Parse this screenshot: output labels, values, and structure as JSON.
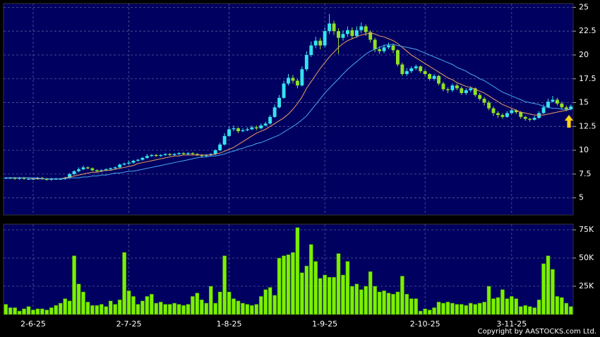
{
  "chart_data": {
    "type": "candlestick",
    "categories": [
      null,
      null,
      null,
      null,
      null,
      null,
      "2-6-25",
      null,
      null,
      null,
      null,
      null,
      null,
      null,
      null,
      null,
      null,
      null,
      null,
      null,
      null,
      null,
      null,
      null,
      null,
      null,
      null,
      "2-7-25",
      null,
      null,
      null,
      null,
      null,
      null,
      null,
      null,
      null,
      null,
      null,
      null,
      null,
      null,
      null,
      null,
      null,
      null,
      null,
      null,
      null,
      "1-8-25",
      null,
      null,
      null,
      null,
      null,
      null,
      null,
      null,
      null,
      null,
      null,
      null,
      null,
      null,
      null,
      null,
      null,
      null,
      null,
      null,
      "1-9-25",
      null,
      null,
      null,
      null,
      null,
      null,
      null,
      null,
      null,
      null,
      null,
      null,
      null,
      null,
      null,
      null,
      null,
      null,
      null,
      null,
      null,
      "2-10-25",
      null,
      null,
      null,
      null,
      null,
      null,
      null,
      null,
      null,
      null,
      null,
      null,
      null,
      null,
      null,
      null,
      null,
      null,
      "3-11-25",
      null,
      null,
      null,
      null,
      null,
      null,
      null,
      null,
      null,
      null,
      null,
      null,
      null
    ],
    "open": [
      7.1,
      7.1,
      7.1,
      7.0,
      7.1,
      7.0,
      7.0,
      7.0,
      7.1,
      7.0,
      6.9,
      7.0,
      7.0,
      7.0,
      7.1,
      7.5,
      7.8,
      8.0,
      8.2,
      8.1,
      7.9,
      7.8,
      7.9,
      8.0,
      8.1,
      8.2,
      8.5,
      8.6,
      8.7,
      8.9,
      9.0,
      9.2,
      9.4,
      9.5,
      9.4,
      9.5,
      9.6,
      9.5,
      9.6,
      9.7,
      9.6,
      9.7,
      9.6,
      9.5,
      9.4,
      9.5,
      9.6,
      10.0,
      10.6,
      11.5,
      12.2,
      12.3,
      12.0,
      12.1,
      12.2,
      12.4,
      12.3,
      12.6,
      12.8,
      13.5,
      14.5,
      15.5,
      17.0,
      17.6,
      17.3,
      16.8,
      18.5,
      20.0,
      21.0,
      21.5,
      21.0,
      22.5,
      23.3,
      22.5,
      21.8,
      22.2,
      22.6,
      22.0,
      22.6,
      23.0,
      22.4,
      21.6,
      20.6,
      20.4,
      20.8,
      21.0,
      20.5,
      19.0,
      18.0,
      18.3,
      18.6,
      18.8,
      18.3,
      18.0,
      17.5,
      17.8,
      17.0,
      16.4,
      16.3,
      16.8,
      16.5,
      16.0,
      16.3,
      16.5,
      15.8,
      15.4,
      15.0,
      14.4,
      13.9,
      13.7,
      13.5,
      13.9,
      14.2,
      14.0,
      13.5,
      13.3,
      13.2,
      13.4,
      13.9,
      14.5,
      15.1,
      15.3,
      14.9,
      14.5,
      14.3
    ],
    "high": [
      7.2,
      7.2,
      7.2,
      7.2,
      7.2,
      7.1,
      7.1,
      7.2,
      7.2,
      7.1,
      7.1,
      7.1,
      7.1,
      7.2,
      7.6,
      7.9,
      8.2,
      8.4,
      8.3,
      8.2,
      8.0,
      8.0,
      8.1,
      8.2,
      8.3,
      8.6,
      8.7,
      8.9,
      9.0,
      9.1,
      9.3,
      9.6,
      9.6,
      9.6,
      9.6,
      9.7,
      9.7,
      9.7,
      9.8,
      9.8,
      9.8,
      9.8,
      9.7,
      9.6,
      9.6,
      9.7,
      10.1,
      10.8,
      11.8,
      12.5,
      12.6,
      12.4,
      12.3,
      12.4,
      12.6,
      12.6,
      12.8,
      13.0,
      13.7,
      14.8,
      15.8,
      17.3,
      18.0,
      17.9,
      17.5,
      18.8,
      20.4,
      21.4,
      21.9,
      21.8,
      22.9,
      24.3,
      23.6,
      22.8,
      22.6,
      23.0,
      22.9,
      23.0,
      23.4,
      23.2,
      22.6,
      21.8,
      20.9,
      21.1,
      21.3,
      21.2,
      20.6,
      19.2,
      18.6,
      18.8,
      19.0,
      18.9,
      18.5,
      18.1,
      18.0,
      17.9,
      17.2,
      16.6,
      17.0,
      17.0,
      16.7,
      16.5,
      16.7,
      16.6,
      16.0,
      15.6,
      15.2,
      14.6,
      14.1,
      13.9,
      14.1,
      14.4,
      14.3,
      14.1,
      13.6,
      13.4,
      13.6,
      14.1,
      14.8,
      15.4,
      15.7,
      15.5,
      15.1,
      14.7,
      14.8
    ],
    "low": [
      7.0,
      7.0,
      6.9,
      6.9,
      6.9,
      6.9,
      6.9,
      6.9,
      6.9,
      6.8,
      6.8,
      6.9,
      6.9,
      6.9,
      7.0,
      7.4,
      7.7,
      7.9,
      8.0,
      7.8,
      7.7,
      7.7,
      7.8,
      7.9,
      8.0,
      8.1,
      8.4,
      8.5,
      8.6,
      8.8,
      8.9,
      9.1,
      9.3,
      9.3,
      9.3,
      9.4,
      9.4,
      9.4,
      9.5,
      9.5,
      9.5,
      9.5,
      9.4,
      9.2,
      9.3,
      9.4,
      9.5,
      9.9,
      10.5,
      11.4,
      12.0,
      11.8,
      11.9,
      12.0,
      12.1,
      12.1,
      12.2,
      12.5,
      12.7,
      13.4,
      14.4,
      15.4,
      16.8,
      17.0,
      16.5,
      16.7,
      18.3,
      19.8,
      20.7,
      20.6,
      20.8,
      22.2,
      22.1,
      20.1,
      21.5,
      21.9,
      21.7,
      21.8,
      22.3,
      22.0,
      21.3,
      20.3,
      20.1,
      20.2,
      20.6,
      20.2,
      18.8,
      17.8,
      17.8,
      18.1,
      18.4,
      18.1,
      17.8,
      17.3,
      17.3,
      16.8,
      16.2,
      16.0,
      16.1,
      16.3,
      15.8,
      15.8,
      16.1,
      15.6,
      15.2,
      14.7,
      14.2,
      13.6,
      13.4,
      13.3,
      13.4,
      13.8,
      13.8,
      13.3,
      13.1,
      13.0,
      13.1,
      13.3,
      13.8,
      14.4,
      15.0,
      14.7,
      14.3,
      14.1,
      14.2
    ],
    "close": [
      7.1,
      7.1,
      7.0,
      7.1,
      7.0,
      7.0,
      7.0,
      7.1,
      7.0,
      6.9,
      7.0,
      7.0,
      7.0,
      7.1,
      7.5,
      7.8,
      8.0,
      8.2,
      8.1,
      7.9,
      7.8,
      7.9,
      8.0,
      8.1,
      8.2,
      8.5,
      8.6,
      8.7,
      8.9,
      9.0,
      9.2,
      9.4,
      9.5,
      9.4,
      9.5,
      9.6,
      9.5,
      9.6,
      9.7,
      9.6,
      9.7,
      9.6,
      9.5,
      9.4,
      9.5,
      9.6,
      10.0,
      10.6,
      11.5,
      12.2,
      12.3,
      12.0,
      12.1,
      12.2,
      12.4,
      12.3,
      12.6,
      12.8,
      13.5,
      14.5,
      15.5,
      17.0,
      17.6,
      17.3,
      16.8,
      18.5,
      20.0,
      21.0,
      21.5,
      21.0,
      22.5,
      23.3,
      22.5,
      21.8,
      22.2,
      22.6,
      22.0,
      22.6,
      23.0,
      22.4,
      21.6,
      20.6,
      20.4,
      20.8,
      21.0,
      20.5,
      19.0,
      18.0,
      18.3,
      18.6,
      18.8,
      18.3,
      18.0,
      17.5,
      17.8,
      17.0,
      16.4,
      16.3,
      16.8,
      16.5,
      16.0,
      16.3,
      16.5,
      15.8,
      15.4,
      15.0,
      14.4,
      13.9,
      13.7,
      13.5,
      13.9,
      14.2,
      14.0,
      13.5,
      13.3,
      13.2,
      13.4,
      13.9,
      14.5,
      15.1,
      15.3,
      14.9,
      14.5,
      14.3,
      14.6
    ],
    "up_color": "#35e3ee",
    "down_color": "#8fe026",
    "ylim": [
      3.2,
      25.4
    ],
    "yticks": [
      5,
      7.5,
      10,
      12.5,
      15,
      17.5,
      20,
      22.5,
      25
    ],
    "grid": true,
    "moving_averages": [
      {
        "color": "#f0a060",
        "values": [
          7.1,
          7.1,
          7.1,
          7.1,
          7.1,
          7.1,
          7.0,
          7.0,
          7.0,
          7.0,
          7.0,
          7.0,
          7.0,
          7.1,
          7.2,
          7.3,
          7.4,
          7.5,
          7.6,
          7.7,
          7.7,
          7.8,
          7.9,
          7.9,
          8.0,
          8.1,
          8.2,
          8.3,
          8.4,
          8.6,
          8.7,
          8.8,
          8.9,
          9.0,
          9.1,
          9.2,
          9.3,
          9.4,
          9.4,
          9.5,
          9.5,
          9.5,
          9.5,
          9.5,
          9.5,
          9.5,
          9.6,
          9.7,
          9.9,
          10.1,
          10.3,
          10.6,
          10.9,
          11.2,
          11.5,
          11.8,
          12.0,
          12.2,
          12.5,
          12.8,
          13.1,
          13.4,
          13.8,
          14.3,
          14.9,
          15.6,
          16.5,
          17.2,
          17.9,
          18.6,
          19.2,
          19.8,
          20.3,
          20.8,
          21.2,
          21.5,
          21.7,
          21.9,
          22.1,
          22.2,
          22.3,
          22.2,
          22.0,
          21.9,
          21.7,
          21.5,
          21.2,
          20.8,
          20.4,
          20.0,
          19.7,
          19.4,
          19.1,
          18.8,
          18.5,
          18.2,
          17.9,
          17.6,
          17.4,
          17.1,
          16.9,
          16.7,
          16.6,
          16.4,
          16.2,
          16.0,
          15.7,
          15.4,
          15.1,
          14.8,
          14.6,
          14.4,
          14.2,
          14.0,
          13.9,
          13.8,
          13.7,
          13.7,
          13.7,
          13.8,
          13.9,
          14.0,
          14.1,
          14.2,
          14.3
        ]
      },
      {
        "color": "#4aa8f0",
        "values": [
          7.1,
          7.1,
          7.1,
          7.1,
          7.1,
          7.1,
          7.1,
          7.1,
          7.0,
          7.0,
          7.0,
          7.0,
          7.0,
          7.0,
          7.1,
          7.1,
          7.1,
          7.2,
          7.2,
          7.3,
          7.3,
          7.4,
          7.4,
          7.5,
          7.6,
          7.6,
          7.7,
          7.8,
          7.8,
          7.9,
          8.0,
          8.1,
          8.2,
          8.3,
          8.4,
          8.5,
          8.6,
          8.7,
          8.8,
          8.9,
          9.0,
          9.1,
          9.2,
          9.3,
          9.3,
          9.4,
          9.4,
          9.5,
          9.6,
          9.8,
          9.9,
          10.1,
          10.2,
          10.4,
          10.5,
          10.7,
          10.8,
          11.0,
          11.2,
          11.4,
          11.6,
          11.9,
          12.2,
          12.5,
          12.8,
          13.2,
          13.6,
          14.2,
          14.8,
          15.4,
          16.0,
          16.5,
          17.0,
          17.5,
          18.0,
          18.5,
          18.9,
          19.3,
          19.7,
          20.1,
          20.4,
          20.6,
          20.8,
          21.0,
          21.1,
          21.1,
          21.0,
          20.9,
          20.8,
          20.7,
          20.6,
          20.4,
          20.2,
          20.0,
          19.8,
          19.6,
          19.4,
          19.2,
          19.0,
          18.7,
          18.5,
          18.3,
          18.0,
          17.8,
          17.5,
          17.3,
          17.0,
          16.7,
          16.4,
          16.1,
          15.9,
          15.7,
          15.5,
          15.3,
          15.1,
          15.0,
          14.9,
          14.8,
          14.6,
          14.5,
          14.4,
          14.4,
          14.3,
          14.3,
          14.3
        ]
      }
    ],
    "volume": {
      "type": "bar",
      "color": "#7cf000",
      "values": [
        9000,
        6000,
        6000,
        3000,
        5000,
        7000,
        4000,
        5000,
        5000,
        4000,
        6000,
        8000,
        10000,
        14000,
        12000,
        52000,
        27000,
        20000,
        11000,
        8000,
        8000,
        9000,
        7000,
        12000,
        9000,
        13000,
        55000,
        21000,
        16000,
        9000,
        12000,
        16000,
        18000,
        10000,
        11000,
        9000,
        9000,
        10000,
        9000,
        8000,
        9000,
        16000,
        19000,
        13000,
        10000,
        25000,
        10000,
        20000,
        52000,
        20000,
        14000,
        12000,
        10000,
        9000,
        8000,
        9000,
        16000,
        22000,
        24000,
        17000,
        50000,
        52000,
        53000,
        55000,
        77000,
        37000,
        43000,
        62000,
        47000,
        32000,
        35000,
        33000,
        33000,
        54000,
        35000,
        47000,
        25000,
        27000,
        22000,
        25000,
        38000,
        25000,
        20000,
        21000,
        19000,
        18000,
        20000,
        34000,
        18000,
        14000,
        14000,
        3000,
        5000,
        4000,
        6000,
        11000,
        10000,
        11000,
        10000,
        9000,
        9000,
        8000,
        10000,
        9000,
        10000,
        11000,
        25000,
        14000,
        15000,
        22000,
        14000,
        16000,
        14000,
        7000,
        8000,
        7000,
        6000,
        13000,
        45000,
        52000,
        40000,
        16000,
        15000,
        10000,
        7000
      ],
      "ylim": [
        0,
        80000
      ],
      "yticks": [
        {
          "value": 25000,
          "label": "25K"
        },
        {
          "value": 50000,
          "label": "50K"
        },
        {
          "value": 75000,
          "label": "75K"
        }
      ]
    },
    "footnote": "Copyright by AASTOCKS.com Ltd."
  }
}
